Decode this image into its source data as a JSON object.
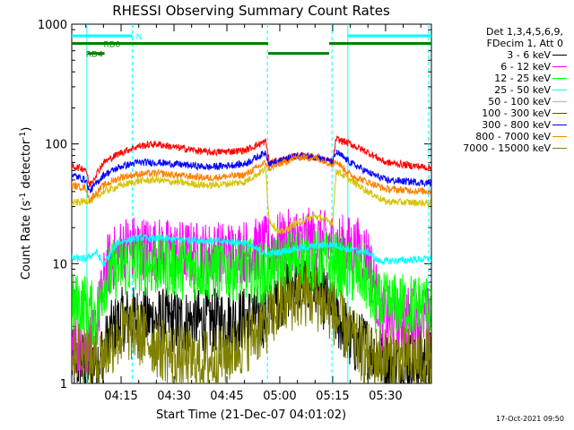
{
  "chart_data": {
    "type": "line",
    "title": "RHESSI Observing Summary Count Rates",
    "xlabel": "Start Time (21-Dec-07 04:01:02)",
    "ylabel_main": "Count Rate (s",
    "ylabel_sup1": "-1",
    "ylabel_mid": " detector",
    "ylabel_sup2": "-1",
    "ylabel_end": ")",
    "x_start_min": 241.0,
    "x_end_min": 343.0,
    "xlim": [
      241.0,
      343.0
    ],
    "ylim": [
      1,
      1000
    ],
    "yscale": "log",
    "x_ticks": [
      {
        "value": 255,
        "label": "04:15"
      },
      {
        "value": 270,
        "label": "04:30"
      },
      {
        "value": 285,
        "label": "04:45"
      },
      {
        "value": 300,
        "label": "05:00"
      },
      {
        "value": 315,
        "label": "05:15"
      },
      {
        "value": 330,
        "label": "05:30"
      }
    ],
    "y_ticks": [
      {
        "value": 1,
        "label": "1"
      },
      {
        "value": 10,
        "label": "10"
      },
      {
        "value": 100,
        "label": "100"
      },
      {
        "value": 1000,
        "label": "1000"
      }
    ],
    "flags": [
      {
        "label": "N",
        "color": "#00ffff",
        "segments": [
          [
            241.0,
            258.2
          ],
          [
            319.2,
            343.0
          ]
        ],
        "level": 800
      },
      {
        "label": "RD0",
        "color": "#008000",
        "segments": [
          [
            241.0,
            296.7
          ],
          [
            314.0,
            343.0
          ]
        ],
        "level": 690
      },
      {
        "label": "RD4",
        "color": "#008000",
        "segments": [
          [
            245.6,
            250.3
          ],
          [
            296.7,
            314.0
          ]
        ],
        "level": 570
      }
    ],
    "flag_label_positions": [
      258.2,
      249,
      244
    ],
    "vertical_lines": [
      {
        "x": 245.3,
        "style": "solid",
        "color": "#00ffff"
      },
      {
        "x": 258.2,
        "style": "dashed",
        "color": "#00ffff"
      },
      {
        "x": 296.5,
        "style": "dashed",
        "color": "#00ffff"
      },
      {
        "x": 314.8,
        "style": "dashed",
        "color": "#00ffff"
      },
      {
        "x": 319.3,
        "style": "solid",
        "color": "#00ffff"
      },
      {
        "x": 342.2,
        "style": "dashed",
        "color": "#00ffff"
      }
    ],
    "legend_header": [
      "Det 1,3,4,5,6,9,",
      "FDecim 1, Att 0"
    ],
    "series": [
      {
        "name": "3 - 6 keV",
        "color": "#000000",
        "points": [
          [
            241,
            1.5
          ],
          [
            245,
            1.5
          ],
          [
            248,
            1.6
          ],
          [
            250,
            1.8
          ],
          [
            252,
            2.6
          ],
          [
            255,
            3.4
          ],
          [
            258,
            3.5
          ],
          [
            265,
            3.4
          ],
          [
            272,
            3.3
          ],
          [
            280,
            3.3
          ],
          [
            287,
            3.4
          ],
          [
            292,
            3.5
          ],
          [
            296,
            3.7
          ],
          [
            300,
            5.5
          ],
          [
            305,
            7.0
          ],
          [
            310,
            6.5
          ],
          [
            314,
            4.5
          ],
          [
            318,
            3.0
          ],
          [
            320,
            2.3
          ],
          [
            325,
            2.0
          ],
          [
            330,
            1.5
          ],
          [
            343,
            1.5
          ]
        ]
      },
      {
        "name": "6 - 12 keV",
        "color": "#ff00ff",
        "points": [
          [
            241,
            2.0
          ],
          [
            247,
            2.2
          ],
          [
            251,
            9.5
          ],
          [
            256,
            14.0
          ],
          [
            262,
            13.5
          ],
          [
            270,
            12.5
          ],
          [
            280,
            12.0
          ],
          [
            288,
            12.5
          ],
          [
            294,
            13.0
          ],
          [
            300,
            14.5
          ],
          [
            305,
            16.0
          ],
          [
            310,
            15.5
          ],
          [
            315,
            14.5
          ],
          [
            320,
            13.5
          ],
          [
            323,
            13.0
          ],
          [
            325,
            11.5
          ],
          [
            329,
            3.5
          ],
          [
            343,
            3.5
          ]
        ]
      },
      {
        "name": "12 - 25 keV",
        "color": "#00ff00",
        "points": [
          [
            241,
            4.5
          ],
          [
            245,
            4.5
          ],
          [
            248,
            3.5
          ],
          [
            250,
            7.0
          ],
          [
            254,
            9.5
          ],
          [
            260,
            10.0
          ],
          [
            270,
            9.5
          ],
          [
            280,
            9.0
          ],
          [
            290,
            9.2
          ],
          [
            296,
            8.0
          ],
          [
            300,
            9.5
          ],
          [
            305,
            11.0
          ],
          [
            310,
            10.5
          ],
          [
            315,
            10.0
          ],
          [
            320,
            8.5
          ],
          [
            324,
            8.0
          ],
          [
            327,
            4.5
          ],
          [
            343,
            4.5
          ]
        ]
      },
      {
        "name": "25 - 50 keV",
        "color": "#00ffff",
        "points": [
          [
            241,
            11.0
          ],
          [
            245,
            11.0
          ],
          [
            248,
            12.5
          ],
          [
            250,
            9.8
          ],
          [
            254,
            15.0
          ],
          [
            260,
            16.5
          ],
          [
            270,
            16.0
          ],
          [
            280,
            15.5
          ],
          [
            290,
            15.0
          ],
          [
            296,
            12.0
          ],
          [
            300,
            12.5
          ],
          [
            305,
            13.5
          ],
          [
            310,
            14.0
          ],
          [
            315,
            14.5
          ],
          [
            320,
            13.0
          ],
          [
            325,
            12.5
          ],
          [
            328,
            10.5
          ],
          [
            330,
            10.5
          ],
          [
            343,
            11.0
          ]
        ]
      },
      {
        "name": "50 - 100 keV",
        "color": "#d4c400",
        "points": [
          [
            241,
            32
          ],
          [
            247,
            34
          ],
          [
            250,
            40
          ],
          [
            255,
            45
          ],
          [
            260,
            49
          ],
          [
            265,
            50
          ],
          [
            270,
            48
          ],
          [
            280,
            45
          ],
          [
            290,
            48
          ],
          [
            296,
            62
          ],
          [
            297,
            23
          ],
          [
            300,
            18
          ],
          [
            305,
            22
          ],
          [
            310,
            25
          ],
          [
            315,
            22
          ],
          [
            316,
            60
          ],
          [
            320,
            50
          ],
          [
            325,
            40
          ],
          [
            330,
            33
          ],
          [
            343,
            32
          ]
        ]
      },
      {
        "name": "100 - 300 keV",
        "color": "#ff0000",
        "points": [
          [
            241,
            65
          ],
          [
            245,
            62
          ],
          [
            246,
            45
          ],
          [
            250,
            70
          ],
          [
            255,
            85
          ],
          [
            260,
            96
          ],
          [
            265,
            100
          ],
          [
            270,
            94
          ],
          [
            280,
            85
          ],
          [
            290,
            88
          ],
          [
            296,
            105
          ],
          [
            297,
            70
          ],
          [
            300,
            72
          ],
          [
            305,
            80
          ],
          [
            310,
            78
          ],
          [
            315,
            70
          ],
          [
            316,
            110
          ],
          [
            320,
            100
          ],
          [
            325,
            85
          ],
          [
            330,
            70
          ],
          [
            343,
            63
          ]
        ]
      },
      {
        "name": "300 - 800 keV",
        "color": "#0000ff",
        "points": [
          [
            241,
            55
          ],
          [
            245,
            50
          ],
          [
            246,
            40
          ],
          [
            250,
            55
          ],
          [
            255,
            65
          ],
          [
            260,
            70
          ],
          [
            265,
            70
          ],
          [
            270,
            68
          ],
          [
            280,
            64
          ],
          [
            290,
            68
          ],
          [
            296,
            85
          ],
          [
            297,
            68
          ],
          [
            300,
            72
          ],
          [
            305,
            80
          ],
          [
            310,
            78
          ],
          [
            315,
            70
          ],
          [
            316,
            85
          ],
          [
            320,
            70
          ],
          [
            325,
            58
          ],
          [
            330,
            50
          ],
          [
            343,
            47
          ]
        ]
      },
      {
        "name": "800 - 7000 keV",
        "color": "#ff8000",
        "points": [
          [
            241,
            45
          ],
          [
            245,
            43
          ],
          [
            246,
            34
          ],
          [
            250,
            45
          ],
          [
            255,
            53
          ],
          [
            260,
            56
          ],
          [
            265,
            57
          ],
          [
            270,
            55
          ],
          [
            280,
            52
          ],
          [
            290,
            55
          ],
          [
            296,
            70
          ],
          [
            297,
            62
          ],
          [
            300,
            68
          ],
          [
            305,
            78
          ],
          [
            310,
            76
          ],
          [
            315,
            68
          ],
          [
            316,
            72
          ],
          [
            320,
            55
          ],
          [
            325,
            48
          ],
          [
            330,
            42
          ],
          [
            343,
            40
          ]
        ]
      },
      {
        "name": "7000 - 15000 keV",
        "color": "#808000",
        "points": [
          [
            241,
            2.0
          ],
          [
            245,
            1.8
          ],
          [
            248,
            1.5
          ],
          [
            250,
            1.8
          ],
          [
            253,
            2.3
          ],
          [
            256,
            2.7
          ],
          [
            258,
            2.8
          ],
          [
            262,
            2.4
          ],
          [
            266,
            2.0
          ],
          [
            270,
            1.7
          ],
          [
            276,
            1.5
          ],
          [
            282,
            1.6
          ],
          [
            288,
            2.0
          ],
          [
            294,
            2.8
          ],
          [
            299,
            4.0
          ],
          [
            303,
            5.0
          ],
          [
            307,
            5.5
          ],
          [
            311,
            5.0
          ],
          [
            315,
            4.0
          ],
          [
            318,
            3.0
          ],
          [
            321,
            2.2
          ],
          [
            325,
            1.7
          ],
          [
            330,
            1.6
          ],
          [
            343,
            1.6
          ]
        ]
      }
    ]
  },
  "timestamp": "17-Oct-2021 09:50"
}
